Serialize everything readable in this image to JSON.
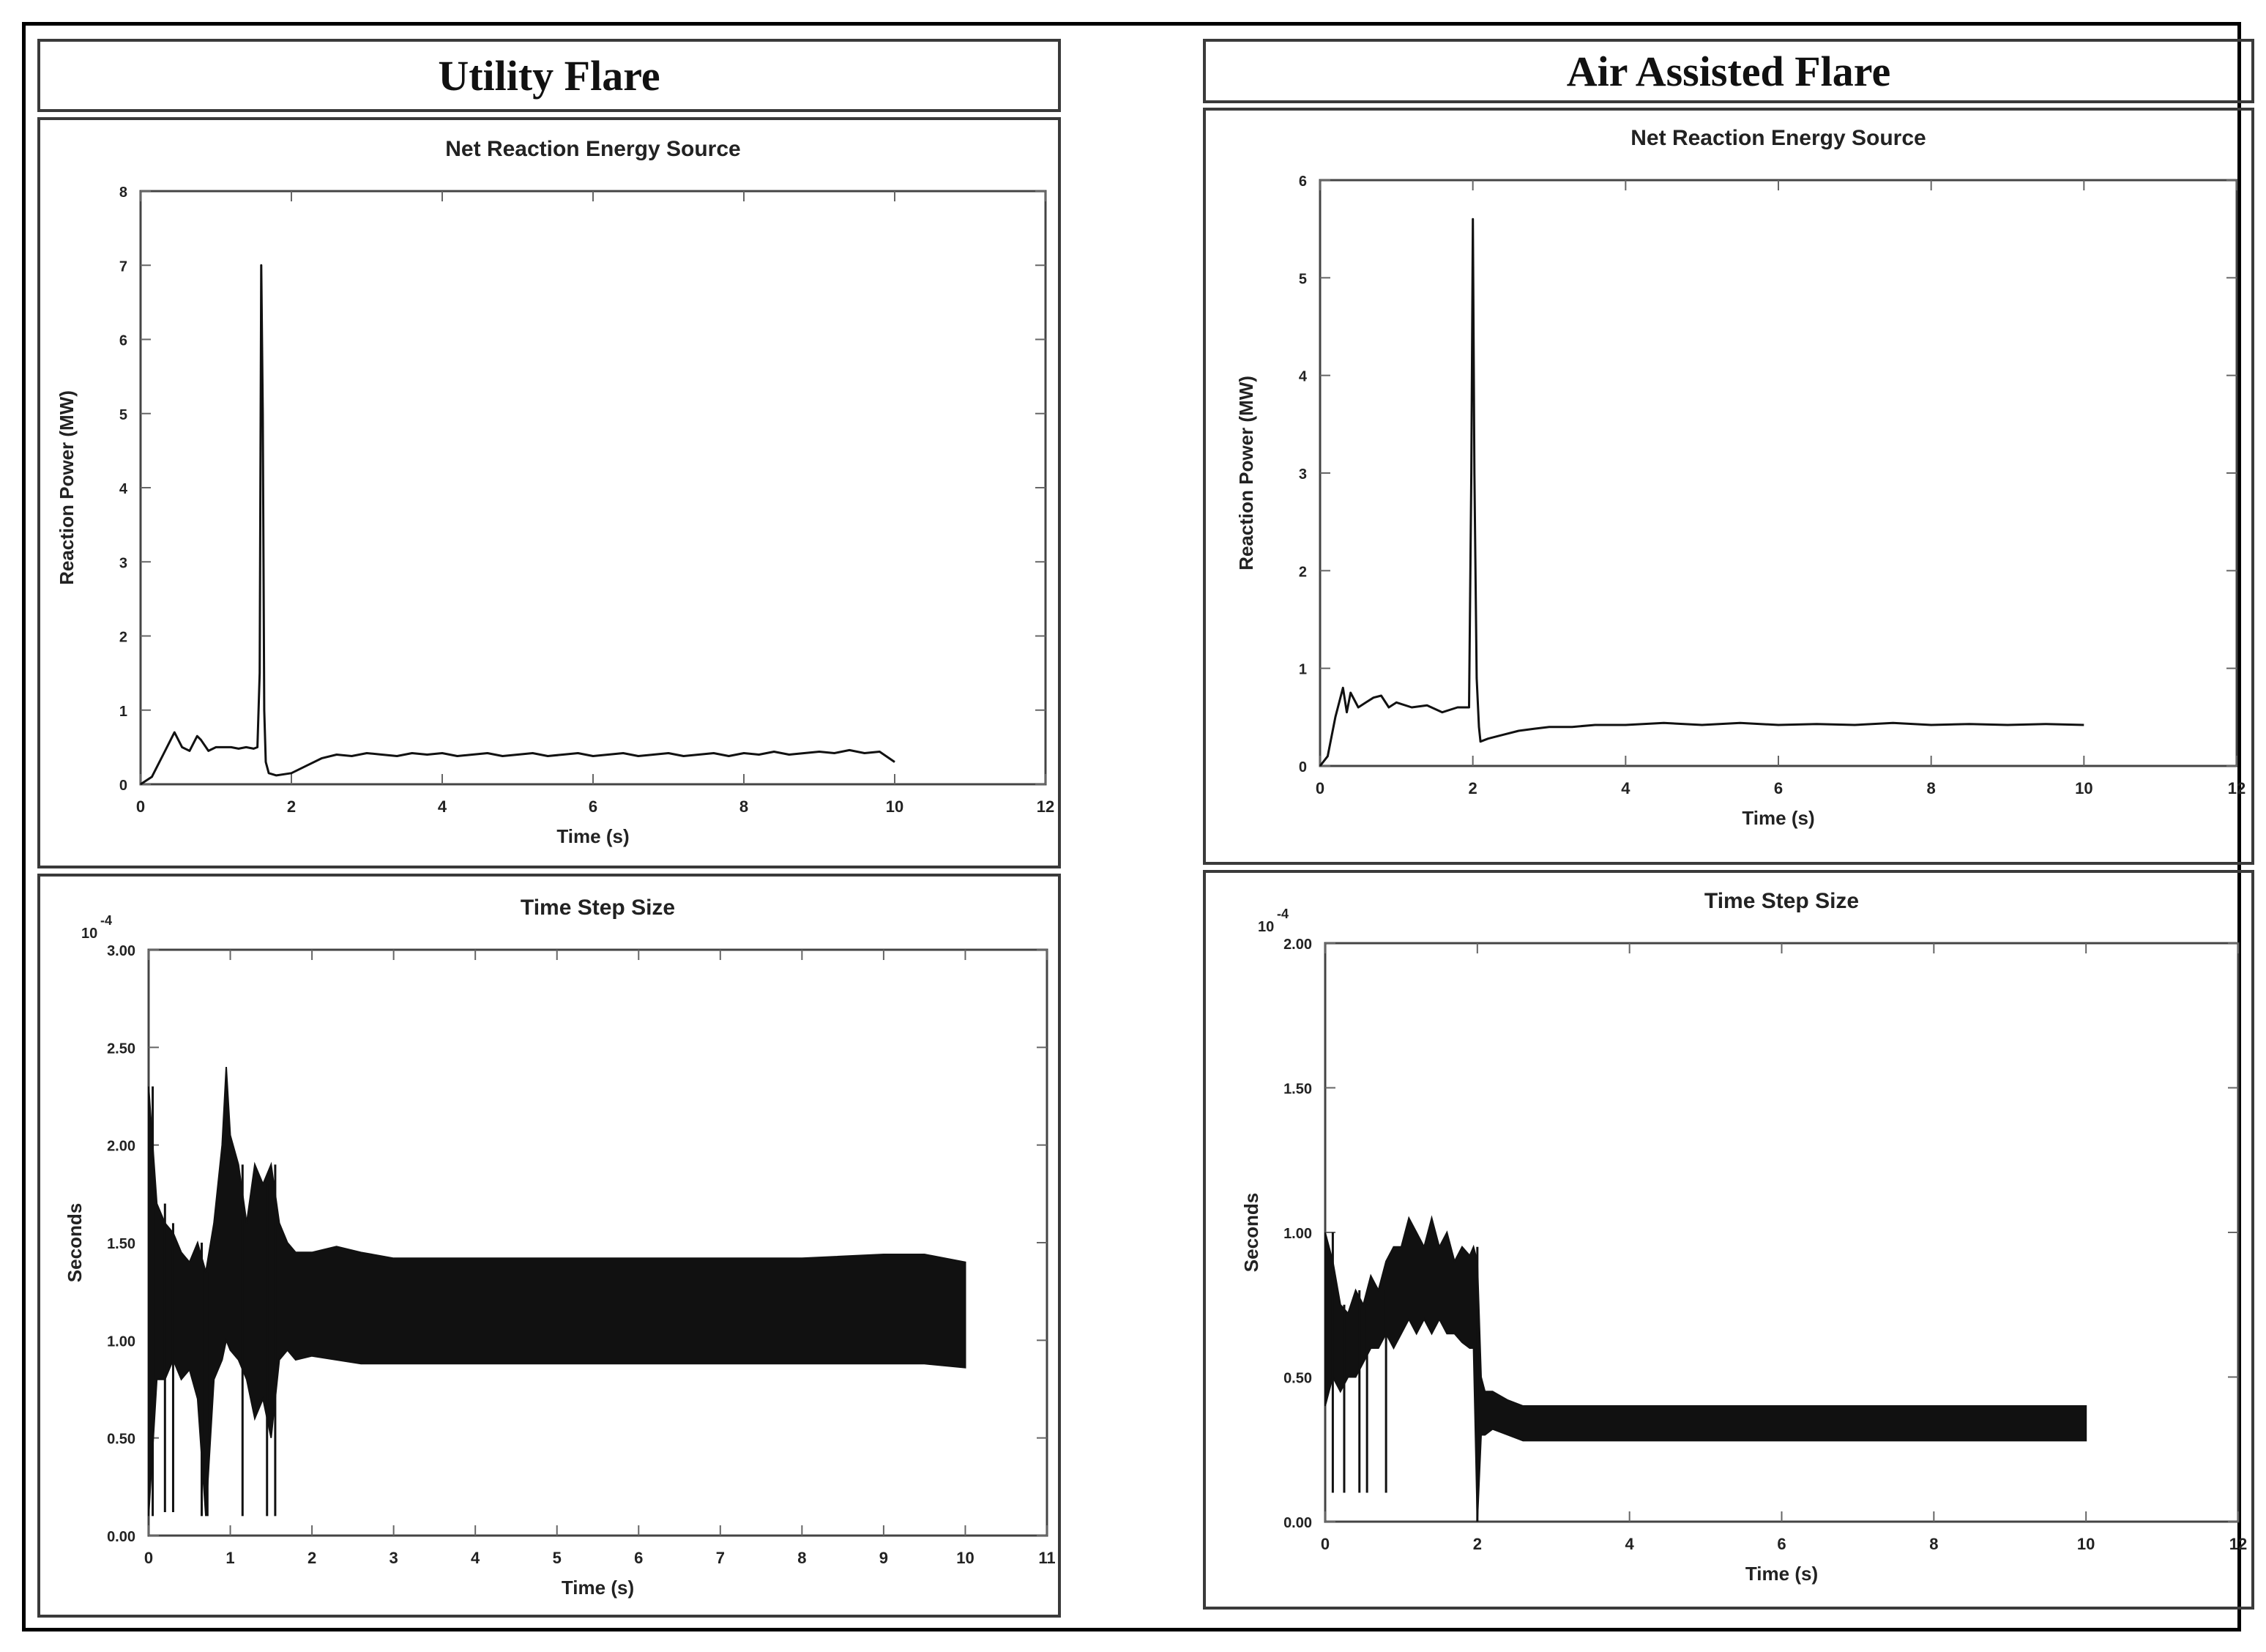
{
  "headers": {
    "left": "Utility Flare",
    "right": "Air Assisted Flare"
  },
  "colors": {
    "trace": "#111111",
    "frame": "#444444",
    "tick": "#666666"
  },
  "chart_data": [
    {
      "id": "utility-reaction",
      "type": "line",
      "title": "Net Reaction Energy Source",
      "xlabel": "Time (s)",
      "ylabel": "Reaction Power (MW)",
      "xlim": [
        0,
        12
      ],
      "ylim": [
        0,
        8
      ],
      "xticks": [
        0,
        2,
        4,
        6,
        8,
        10,
        12
      ],
      "yticks": [
        0,
        1,
        2,
        3,
        4,
        5,
        6,
        7,
        8
      ],
      "ytick_labels": [
        "0",
        "1",
        "2",
        "3",
        "4",
        "5",
        "6",
        "7",
        "8"
      ],
      "series": [
        {
          "x": [
            0,
            0.15,
            0.3,
            0.45,
            0.55,
            0.65,
            0.75,
            0.8,
            0.9,
            1.0,
            1.1,
            1.2,
            1.3,
            1.4,
            1.5,
            1.55,
            1.58,
            1.6,
            1.62,
            1.64,
            1.66,
            1.7,
            1.8,
            2.0,
            2.2,
            2.4,
            2.6,
            2.8,
            3.0,
            3.2,
            3.4,
            3.6,
            3.8,
            4.0,
            4.2,
            4.4,
            4.6,
            4.8,
            5.0,
            5.2,
            5.4,
            5.6,
            5.8,
            6.0,
            6.2,
            6.4,
            6.6,
            6.8,
            7.0,
            7.2,
            7.4,
            7.6,
            7.8,
            8.0,
            8.2,
            8.4,
            8.6,
            8.8,
            9.0,
            9.2,
            9.4,
            9.6,
            9.8,
            10.0
          ],
          "y": [
            0,
            0.1,
            0.4,
            0.7,
            0.5,
            0.45,
            0.65,
            0.6,
            0.45,
            0.5,
            0.5,
            0.5,
            0.48,
            0.5,
            0.48,
            0.5,
            1.5,
            7.0,
            5.0,
            1.0,
            0.3,
            0.15,
            0.12,
            0.15,
            0.25,
            0.35,
            0.4,
            0.38,
            0.42,
            0.4,
            0.38,
            0.42,
            0.4,
            0.42,
            0.38,
            0.4,
            0.42,
            0.38,
            0.4,
            0.42,
            0.38,
            0.4,
            0.42,
            0.38,
            0.4,
            0.42,
            0.38,
            0.4,
            0.42,
            0.38,
            0.4,
            0.42,
            0.38,
            0.42,
            0.4,
            0.44,
            0.4,
            0.42,
            0.44,
            0.42,
            0.46,
            0.42,
            0.44,
            0.3
          ]
        }
      ]
    },
    {
      "id": "air-reaction",
      "type": "line",
      "title": "Net Reaction Energy Source",
      "xlabel": "Time (s)",
      "ylabel": "Reaction Power (MW)",
      "xlim": [
        0,
        12
      ],
      "ylim": [
        0,
        6
      ],
      "xticks": [
        0,
        2,
        4,
        6,
        8,
        10,
        12
      ],
      "yticks": [
        0,
        1,
        2,
        3,
        4,
        5,
        6
      ],
      "ytick_labels": [
        "0",
        "1",
        "2",
        "3",
        "4",
        "5",
        "6"
      ],
      "series": [
        {
          "x": [
            0,
            0.1,
            0.2,
            0.3,
            0.35,
            0.4,
            0.5,
            0.6,
            0.7,
            0.8,
            0.9,
            1.0,
            1.2,
            1.4,
            1.6,
            1.8,
            1.95,
            1.98,
            2.0,
            2.02,
            2.05,
            2.08,
            2.1,
            2.2,
            2.4,
            2.6,
            2.8,
            3.0,
            3.3,
            3.6,
            4.0,
            4.5,
            5.0,
            5.5,
            6.0,
            6.5,
            7.0,
            7.5,
            8.0,
            8.5,
            9.0,
            9.5,
            10.0
          ],
          "y": [
            0,
            0.1,
            0.5,
            0.8,
            0.55,
            0.75,
            0.6,
            0.65,
            0.7,
            0.72,
            0.6,
            0.65,
            0.6,
            0.62,
            0.55,
            0.6,
            0.6,
            3.0,
            5.6,
            3.0,
            0.9,
            0.4,
            0.25,
            0.28,
            0.32,
            0.36,
            0.38,
            0.4,
            0.4,
            0.42,
            0.42,
            0.44,
            0.42,
            0.44,
            0.42,
            0.43,
            0.42,
            0.44,
            0.42,
            0.43,
            0.42,
            0.43,
            0.42
          ]
        }
      ]
    },
    {
      "id": "utility-timestep",
      "type": "line",
      "title": "Time Step Size",
      "xlabel": "Time (s)",
      "ylabel": "Seconds",
      "scale_label": "10",
      "scale_exponent": "-4",
      "xlim": [
        0,
        11
      ],
      "ylim": [
        0,
        3
      ],
      "xticks": [
        0,
        1,
        2,
        3,
        4,
        5,
        6,
        7,
        8,
        9,
        10,
        11
      ],
      "yticks": [
        0,
        0.5,
        1,
        1.5,
        2,
        2.5,
        3
      ],
      "ytick_labels": [
        "0.00",
        "0.50",
        "1.00",
        "1.50",
        "2.00",
        "2.50",
        "3.00"
      ],
      "band": {
        "x": [
          0,
          0.1,
          0.2,
          0.3,
          0.4,
          0.5,
          0.6,
          0.7,
          0.8,
          0.9,
          0.95,
          1.0,
          1.1,
          1.2,
          1.3,
          1.4,
          1.5,
          1.6,
          1.7,
          1.8,
          2.0,
          2.3,
          2.6,
          3.0,
          4.0,
          5.0,
          6.0,
          7.0,
          8.0,
          9.0,
          9.5,
          10.0
        ],
        "upper": [
          2.3,
          1.7,
          1.6,
          1.55,
          1.45,
          1.4,
          1.5,
          1.35,
          1.6,
          2.0,
          2.4,
          2.05,
          1.9,
          1.6,
          1.9,
          1.8,
          1.9,
          1.6,
          1.5,
          1.45,
          1.45,
          1.48,
          1.45,
          1.42,
          1.42,
          1.42,
          1.42,
          1.42,
          1.42,
          1.44,
          1.44,
          1.4
        ],
        "lower": [
          0.1,
          0.8,
          0.8,
          0.9,
          0.8,
          0.85,
          0.7,
          0.1,
          0.8,
          0.9,
          1.0,
          0.95,
          0.9,
          0.8,
          0.6,
          0.7,
          0.5,
          0.9,
          0.95,
          0.9,
          0.92,
          0.9,
          0.88,
          0.88,
          0.88,
          0.88,
          0.88,
          0.88,
          0.88,
          0.88,
          0.88,
          0.86
        ]
      },
      "spikes": [
        {
          "x": 0.05,
          "y": 0.1
        },
        {
          "x": 0.2,
          "y": 0.12
        },
        {
          "x": 0.3,
          "y": 0.12
        },
        {
          "x": 0.65,
          "y": 0.1
        },
        {
          "x": 0.72,
          "y": 0.1
        },
        {
          "x": 1.15,
          "y": 0.1
        },
        {
          "x": 1.45,
          "y": 0.1
        },
        {
          "x": 1.55,
          "y": 0.1
        }
      ]
    },
    {
      "id": "air-timestep",
      "type": "line",
      "title": "Time Step Size",
      "xlabel": "Time (s)",
      "ylabel": "Seconds",
      "scale_label": "10",
      "scale_exponent": "-4",
      "xlim": [
        0,
        12
      ],
      "ylim": [
        0,
        2
      ],
      "xticks": [
        0,
        2,
        4,
        6,
        8,
        10,
        12
      ],
      "yticks": [
        0,
        0.5,
        1,
        1.5,
        2
      ],
      "ytick_labels": [
        "0.00",
        "0.50",
        "1.00",
        "1.50",
        "2.00"
      ],
      "band": {
        "x": [
          0,
          0.1,
          0.2,
          0.3,
          0.4,
          0.5,
          0.6,
          0.7,
          0.8,
          0.9,
          1.0,
          1.1,
          1.2,
          1.3,
          1.4,
          1.5,
          1.6,
          1.7,
          1.8,
          1.9,
          1.95,
          2.0,
          2.05,
          2.1,
          2.2,
          2.4,
          2.6,
          2.8,
          3.0,
          4.0,
          5.0,
          6.0,
          7.0,
          8.0,
          9.0,
          10.0
        ],
        "upper": [
          1.0,
          0.9,
          0.75,
          0.72,
          0.8,
          0.75,
          0.85,
          0.8,
          0.9,
          0.95,
          0.95,
          1.05,
          1.0,
          0.95,
          1.05,
          0.95,
          1.0,
          0.9,
          0.95,
          0.92,
          0.95,
          0.9,
          0.5,
          0.45,
          0.45,
          0.42,
          0.4,
          0.4,
          0.4,
          0.4,
          0.4,
          0.4,
          0.4,
          0.4,
          0.4,
          0.4
        ],
        "lower": [
          0.4,
          0.5,
          0.45,
          0.5,
          0.5,
          0.55,
          0.6,
          0.6,
          0.65,
          0.6,
          0.65,
          0.7,
          0.65,
          0.7,
          0.65,
          0.7,
          0.65,
          0.65,
          0.62,
          0.6,
          0.6,
          0.0,
          0.3,
          0.3,
          0.32,
          0.3,
          0.28,
          0.28,
          0.28,
          0.28,
          0.28,
          0.28,
          0.28,
          0.28,
          0.28,
          0.28
        ]
      },
      "spikes": [
        {
          "x": 0.1,
          "y": 0.1
        },
        {
          "x": 0.25,
          "y": 0.1
        },
        {
          "x": 0.45,
          "y": 0.1
        },
        {
          "x": 0.55,
          "y": 0.1
        },
        {
          "x": 0.8,
          "y": 0.1
        },
        {
          "x": 2.0,
          "y": 0.0
        }
      ]
    }
  ]
}
